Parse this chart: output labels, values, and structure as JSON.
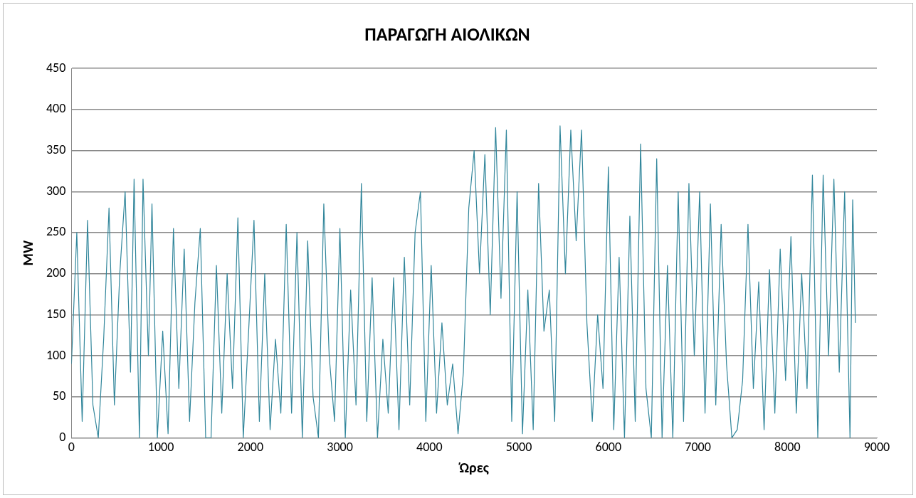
{
  "chart_data": {
    "type": "line",
    "title": "ΠΑΡΑΓΩΓΗ ΑΙΟΛΙΚΩΝ",
    "xlabel": "Ώρες",
    "ylabel": "MW",
    "x": [
      0,
      60,
      120,
      180,
      240,
      300,
      360,
      420,
      480,
      540,
      600,
      660,
      700,
      760,
      800,
      860,
      900,
      960,
      1020,
      1080,
      1140,
      1200,
      1260,
      1320,
      1380,
      1440,
      1500,
      1560,
      1620,
      1680,
      1740,
      1800,
      1860,
      1920,
      1980,
      2040,
      2100,
      2160,
      2220,
      2280,
      2340,
      2400,
      2460,
      2520,
      2580,
      2640,
      2700,
      2760,
      2820,
      2880,
      2940,
      3000,
      3060,
      3120,
      3180,
      3240,
      3300,
      3360,
      3420,
      3480,
      3540,
      3600,
      3660,
      3720,
      3780,
      3840,
      3900,
      3960,
      4020,
      4080,
      4140,
      4200,
      4260,
      4320,
      4380,
      4440,
      4500,
      4560,
      4620,
      4680,
      4740,
      4800,
      4860,
      4920,
      4980,
      5040,
      5100,
      5160,
      5220,
      5280,
      5340,
      5400,
      5460,
      5520,
      5580,
      5640,
      5700,
      5760,
      5820,
      5880,
      5940,
      6000,
      6060,
      6120,
      6180,
      6240,
      6300,
      6360,
      6420,
      6480,
      6540,
      6600,
      6660,
      6720,
      6780,
      6840,
      6900,
      6960,
      7020,
      7080,
      7140,
      7200,
      7260,
      7320,
      7380,
      7440,
      7500,
      7560,
      7620,
      7680,
      7740,
      7800,
      7860,
      7920,
      7980,
      8040,
      8100,
      8160,
      8220,
      8280,
      8340,
      8400,
      8460,
      8520,
      8580,
      8640,
      8700,
      8730,
      8760
    ],
    "series": [
      {
        "color": "#31869b",
        "values": [
          90,
          250,
          20,
          265,
          40,
          0,
          120,
          280,
          40,
          200,
          300,
          80,
          315,
          0,
          315,
          100,
          285,
          0,
          130,
          5,
          255,
          60,
          230,
          20,
          165,
          255,
          0,
          0,
          210,
          30,
          200,
          60,
          268,
          0,
          130,
          265,
          20,
          200,
          10,
          120,
          30,
          260,
          30,
          250,
          0,
          240,
          50,
          0,
          285,
          100,
          20,
          255,
          0,
          180,
          40,
          310,
          20,
          195,
          0,
          120,
          30,
          195,
          10,
          220,
          40,
          250,
          300,
          20,
          210,
          30,
          140,
          40,
          90,
          5,
          80,
          280,
          350,
          200,
          345,
          150,
          378,
          170,
          375,
          20,
          300,
          5,
          180,
          10,
          310,
          130,
          180,
          20,
          380,
          200,
          375,
          240,
          375,
          140,
          20,
          150,
          60,
          330,
          10,
          220,
          0,
          270,
          20,
          358,
          60,
          0,
          340,
          0,
          210,
          0,
          300,
          20,
          310,
          100,
          300,
          30,
          285,
          40,
          260,
          90,
          0,
          10,
          70,
          260,
          60,
          190,
          10,
          205,
          30,
          230,
          70,
          245,
          30,
          200,
          60,
          320,
          0,
          320,
          100,
          315,
          80,
          300,
          0,
          290,
          140
        ]
      }
    ],
    "xlim": [
      0,
      9000
    ],
    "xticks": [
      0,
      1000,
      2000,
      3000,
      4000,
      5000,
      6000,
      7000,
      8000,
      9000
    ],
    "ylim": [
      0,
      450
    ],
    "yticks": [
      0,
      50,
      100,
      150,
      200,
      250,
      300,
      350,
      400,
      450
    ],
    "grid": "y",
    "legend": false,
    "marker": "none",
    "line_style": "solid"
  }
}
